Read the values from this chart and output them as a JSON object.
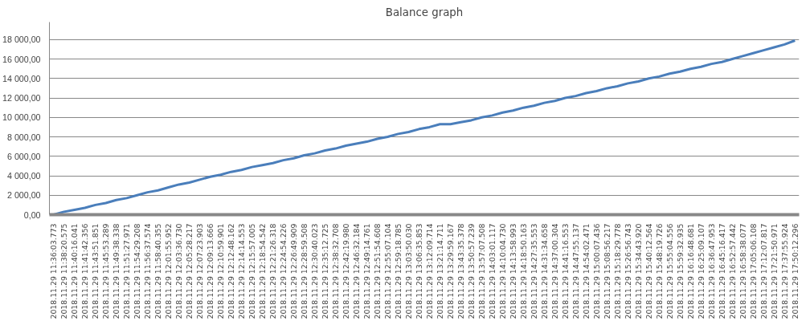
{
  "chart_data": {
    "type": "line",
    "title": "Balance graph",
    "categories": [
      "2018.11.29 11:36:03.773",
      "2018.11.29 11:38:20.575",
      "2018.11.29 11:40:16.041",
      "2018.11.29 11:41:42.356",
      "2018.11.29 11:43:51.851",
      "2018.11.29 11:45:53.289",
      "2018.11.29 11:49:38.338",
      "2018.11.29 11:51:27.971",
      "2018.11.29 11:54:29.208",
      "2018.11.29 11:56:37.574",
      "2018.11.29 11:58:40.355",
      "2018.11.29 12:01:55.952",
      "2018.11.29 12:03:36.730",
      "2018.11.29 12:05:28.217",
      "2018.11.29 12:07:23.903",
      "2018.11.29 12:09:13.666",
      "2018.11.29 12:10:59.901",
      "2018.11.29 12:12:48.162",
      "2018.11.29 12:14:14.553",
      "2018.11.29 12:15:57.005",
      "2018.11.29 12:18:54.542",
      "2018.11.29 12:21:26.318",
      "2018.11.29 12:24:54.226",
      "2018.11.29 12:26:49.909",
      "2018.11.29 12:28:59.508",
      "2018.11.29 12:30:40.023",
      "2018.11.29 12:35:12.725",
      "2018.11.29 12:38:32.708",
      "2018.11.29 12:42:19.980",
      "2018.11.29 12:46:32.184",
      "2018.11.29 12:49:14.761",
      "2018.11.29 12:51:54.608",
      "2018.11.29 12:55:07.104",
      "2018.11.29 12:59:18.785",
      "2018.11.29 13:03:50.030",
      "2018.11.29 13:06:35.853",
      "2018.11.29 13:12:09.714",
      "2018.11.29 13:21:14.711",
      "2018.11.29 13:29:59.167",
      "2018.11.29 13:43:35.378",
      "2018.11.29 13:50:57.239",
      "2018.11.29 13:57:07.508",
      "2018.11.29 14:03:01.117",
      "2018.11.29 14:10:04.730",
      "2018.11.29 14:13:58.993",
      "2018.11.29 14:18:50.163",
      "2018.11.29 14:27:35.553",
      "2018.11.29 14:31:34.658",
      "2018.11.29 14:37:00.304",
      "2018.11.29 14:41:16.553",
      "2018.11.29 14:47:55.137",
      "2018.11.29 14:54:02.471",
      "2018.11.29 15:00:07.436",
      "2018.11.29 15:08:56.217",
      "2018.11.29 15:18:29.778",
      "2018.11.29 15:26:56.743",
      "2018.11.29 15:34:43.920",
      "2018.11.29 15:40:12.564",
      "2018.11.29 15:48:19.726",
      "2018.11.29 15:55:04.556",
      "2018.11.29 15:59:32.935",
      "2018.11.29 16:16:48.681",
      "2018.11.29 16:25:09.107",
      "2018.11.29 16:36:47.953",
      "2018.11.29 16:45:16.417",
      "2018.11.29 16:52:57.442",
      "2018.11.29 16:58:38.077",
      "2018.11.29 17:05:06.108",
      "2018.11.29 17:12:07.817",
      "2018.11.29 17:21:50.971",
      "2018.11.29 17:37:55.924",
      "2018.11.29 17:50:12.296"
    ],
    "series": [
      {
        "color": "#4a7ebb",
        "values": [
          0,
          300,
          500,
          700,
          1000,
          1200,
          1500,
          1700,
          2000,
          2300,
          2500,
          2800,
          3100,
          3300,
          3600,
          3900,
          4100,
          4400,
          4600,
          4900,
          5100,
          5300,
          5600,
          5800,
          6100,
          6300,
          6600,
          6800,
          7100,
          7300,
          7500,
          7800,
          8000,
          8300,
          8500,
          8800,
          9000,
          9300,
          9300,
          9500,
          9700,
          10000,
          10200,
          10500,
          10700,
          11000,
          11200,
          11500,
          11700,
          12000,
          12200,
          12500,
          12700,
          13000,
          13200,
          13500,
          13700,
          14000,
          14200,
          14500,
          14700,
          15000,
          15200,
          15500,
          15700,
          16000,
          16300,
          16600,
          16900,
          17200,
          17500,
          17900
        ]
      }
    ],
    "ylim": [
      0,
      19800
    ],
    "yticks": [
      {
        "value": 0,
        "label": "0,00"
      },
      {
        "value": 2000,
        "label": "2 000,00"
      },
      {
        "value": 4000,
        "label": "4 000,00"
      },
      {
        "value": 6000,
        "label": "6 000,00"
      },
      {
        "value": 8000,
        "label": "8 000,00"
      },
      {
        "value": 10000,
        "label": "10 000,00"
      },
      {
        "value": 12000,
        "label": "12 000,00"
      },
      {
        "value": 14000,
        "label": "14 000,00"
      },
      {
        "value": 16000,
        "label": "16 000,00"
      },
      {
        "value": 18000,
        "label": "18 000,00"
      }
    ],
    "grid": "y",
    "marker": "none",
    "line_style": "solid"
  }
}
